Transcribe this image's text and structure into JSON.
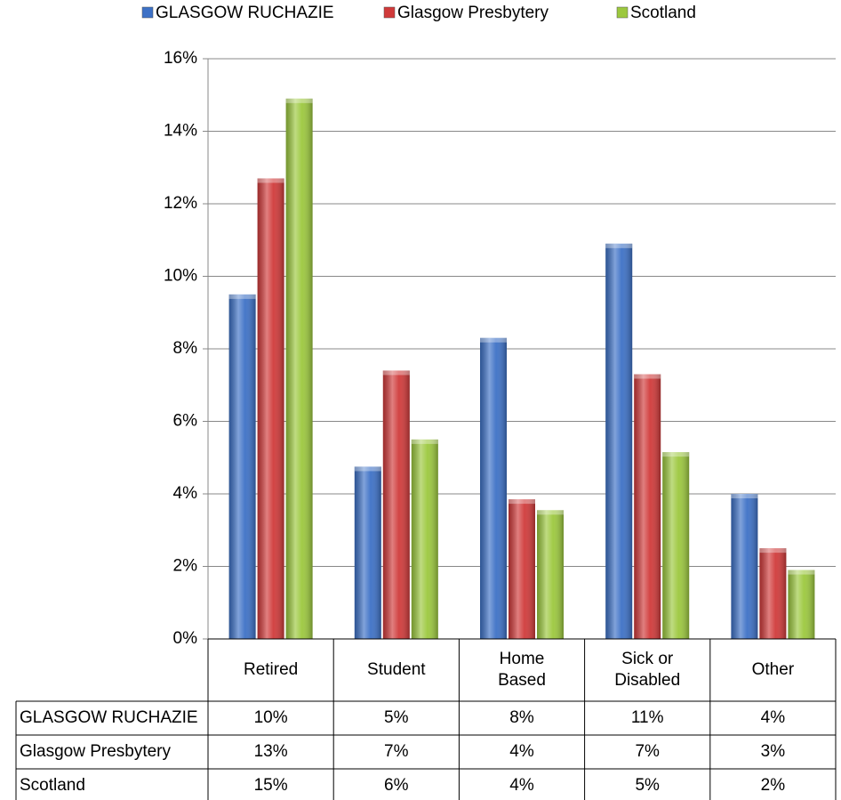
{
  "chart_data": {
    "type": "bar",
    "categories": [
      "Retired",
      "Student",
      "Home Based",
      "Sick or Disabled",
      "Other"
    ],
    "series": [
      {
        "name": "GLASGOW RUCHAZIE",
        "color": "#3d71c6",
        "values": [
          9.5,
          4.75,
          8.3,
          10.9,
          4.0
        ],
        "value_labels": [
          "10%",
          "5%",
          "8%",
          "11%",
          "4%"
        ]
      },
      {
        "name": "Glasgow Presbytery",
        "color": "#d03a3a",
        "values": [
          12.7,
          7.4,
          3.85,
          7.3,
          2.5
        ],
        "value_labels": [
          "13%",
          "7%",
          "4%",
          "7%",
          "3%"
        ]
      },
      {
        "name": "Scotland",
        "color": "#9cc83e",
        "values": [
          14.9,
          5.5,
          3.55,
          5.15,
          1.9
        ],
        "value_labels": [
          "15%",
          "6%",
          "4%",
          "5%",
          "2%"
        ]
      }
    ],
    "ylim": [
      0,
      16
    ],
    "yticks": [
      {
        "value": 0,
        "label": "0%"
      },
      {
        "value": 2,
        "label": "2%"
      },
      {
        "value": 4,
        "label": "4%"
      },
      {
        "value": 6,
        "label": "6%"
      },
      {
        "value": 8,
        "label": "8%"
      },
      {
        "value": 10,
        "label": "10%"
      },
      {
        "value": 12,
        "label": "12%"
      },
      {
        "value": 14,
        "label": "14%"
      },
      {
        "value": 16,
        "label": "16%"
      }
    ],
    "grid": true,
    "legend": "top"
  }
}
